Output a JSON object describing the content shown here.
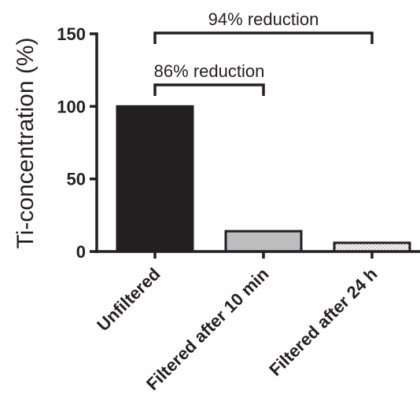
{
  "chart_data": {
    "type": "bar",
    "ylabel": "Ti-concentration (%)",
    "xlabel": "",
    "ylim": [
      0,
      150
    ],
    "yticks": [
      0,
      50,
      100,
      150
    ],
    "categories": [
      "Unfiltered",
      "Filtered after 10 min",
      "Filtered after 24 h"
    ],
    "values": [
      100,
      14,
      6
    ],
    "bar_styles": [
      {
        "fill": "#231f20",
        "pattern": "solid"
      },
      {
        "fill": "#bcbec0",
        "pattern": "solid"
      },
      {
        "fill": "#ffffff",
        "pattern": "dotted"
      }
    ],
    "annotations": [
      {
        "text": "86% reduction",
        "from_category": 0,
        "to_category": 1
      },
      {
        "text": "94% reduction",
        "from_category": 0,
        "to_category": 2
      }
    ],
    "grid": false,
    "legend": "none"
  }
}
